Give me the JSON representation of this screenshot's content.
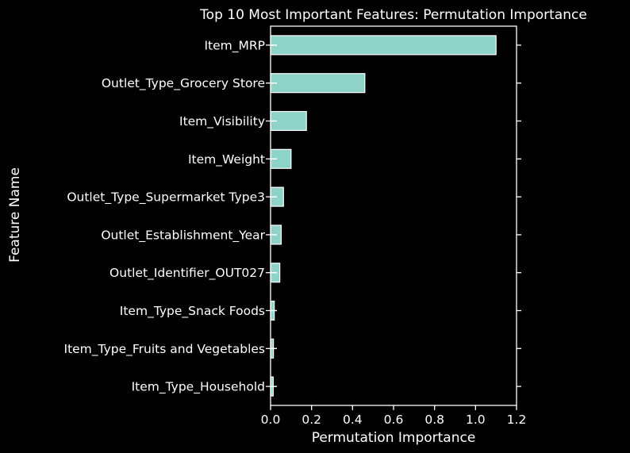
{
  "chart_data": {
    "type": "bar",
    "orientation": "horizontal",
    "title": "Top 10 Most Important Features: Permutation Importance",
    "xlabel": "Permutation Importance",
    "ylabel": "Feature Name",
    "xlim": [
      0.0,
      1.2
    ],
    "xticks": [
      "0.0",
      "0.2",
      "0.4",
      "0.6",
      "0.8",
      "1.0",
      "1.2"
    ],
    "categories": [
      "Item_MRP",
      "Outlet_Type_Grocery Store",
      "Item_Visibility",
      "Item_Weight",
      "Outlet_Type_Supermarket Type3",
      "Outlet_Establishment_Year",
      "Outlet_Identifier_OUT027",
      "Item_Type_Snack Foods",
      "Item_Type_Fruits and Vegetables",
      "Item_Type_Household"
    ],
    "values": [
      1.1,
      0.46,
      0.175,
      0.1,
      0.063,
      0.052,
      0.045,
      0.018,
      0.014,
      0.013
    ],
    "bar_color": "#8dd3c7",
    "background": "#000000",
    "grid": false,
    "legend": "none"
  }
}
